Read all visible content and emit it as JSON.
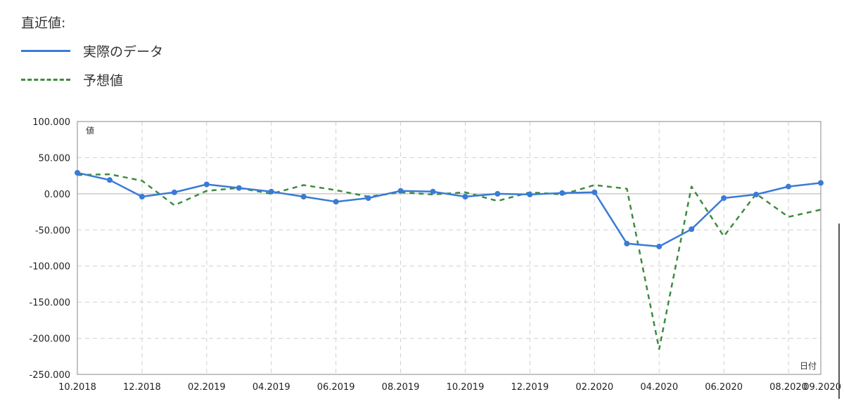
{
  "legend": {
    "title": "直近値:",
    "actual_label": "実際のデータ",
    "forecast_label": "予想値"
  },
  "colors": {
    "actual": "#3a7bd5",
    "forecast": "#3d8b40",
    "grid": "#d0d0d0",
    "zero_line": "#b0b0b0",
    "border": "#888888"
  },
  "chart_data": {
    "type": "line",
    "title": "",
    "xlabel": "日付",
    "ylabel": "値",
    "ylim": [
      -250,
      100
    ],
    "y_ticks": [
      100,
      50,
      0,
      -50,
      -100,
      -150,
      -200,
      -250
    ],
    "y_tick_labels": [
      "100.000",
      "50.000",
      "0.000",
      "-50.000",
      "-100.000",
      "-150.000",
      "-200.000",
      "-250.000"
    ],
    "x_ticks": [
      "10.2018",
      "12.2018",
      "02.2019",
      "04.2019",
      "06.2019",
      "08.2019",
      "10.2019",
      "12.2019",
      "02.2020",
      "04.2020",
      "06.2020",
      "08.2020",
      "09.2020"
    ],
    "grid": true,
    "legend_position": "top-left",
    "series": [
      {
        "name": "実際のデータ",
        "style": "solid-with-markers",
        "points": [
          {
            "x": "2018-10-01",
            "y": 29
          },
          {
            "x": "2018-11-01",
            "y": 19
          },
          {
            "x": "2018-12-01",
            "y": -4
          },
          {
            "x": "2019-01-01",
            "y": 2
          },
          {
            "x": "2019-02-01",
            "y": 13
          },
          {
            "x": "2019-03-01",
            "y": 8
          },
          {
            "x": "2019-04-01",
            "y": 3
          },
          {
            "x": "2019-05-01",
            "y": -4
          },
          {
            "x": "2019-06-01",
            "y": -11
          },
          {
            "x": "2019-07-01",
            "y": -6
          },
          {
            "x": "2019-08-01",
            "y": 4
          },
          {
            "x": "2019-09-01",
            "y": 3
          },
          {
            "x": "2019-10-01",
            "y": -4
          },
          {
            "x": "2019-11-01",
            "y": 0
          },
          {
            "x": "2019-12-01",
            "y": -1
          },
          {
            "x": "2020-01-01",
            "y": 1
          },
          {
            "x": "2020-02-01",
            "y": 2
          },
          {
            "x": "2020-03-01",
            "y": -69
          },
          {
            "x": "2020-04-01",
            "y": -73
          },
          {
            "x": "2020-05-01",
            "y": -49
          },
          {
            "x": "2020-06-01",
            "y": -6
          },
          {
            "x": "2020-07-01",
            "y": -1
          },
          {
            "x": "2020-08-01",
            "y": 10
          },
          {
            "x": "2020-09-01",
            "y": 15
          }
        ]
      },
      {
        "name": "予想値",
        "style": "dashed",
        "points": [
          {
            "x": "2018-10-01",
            "y": 26
          },
          {
            "x": "2018-11-01",
            "y": 27
          },
          {
            "x": "2018-12-01",
            "y": 18
          },
          {
            "x": "2019-01-01",
            "y": -16
          },
          {
            "x": "2019-02-01",
            "y": 4
          },
          {
            "x": "2019-03-01",
            "y": 8
          },
          {
            "x": "2019-04-01",
            "y": 0
          },
          {
            "x": "2019-05-01",
            "y": 12
          },
          {
            "x": "2019-06-01",
            "y": 5
          },
          {
            "x": "2019-07-01",
            "y": -4
          },
          {
            "x": "2019-08-01",
            "y": 2
          },
          {
            "x": "2019-09-01",
            "y": -1
          },
          {
            "x": "2019-10-01",
            "y": 2
          },
          {
            "x": "2019-11-01",
            "y": -10
          },
          {
            "x": "2019-12-01",
            "y": 2
          },
          {
            "x": "2020-01-01",
            "y": -1
          },
          {
            "x": "2020-02-01",
            "y": 12
          },
          {
            "x": "2020-03-01",
            "y": 7
          },
          {
            "x": "2020-04-01",
            "y": -215
          },
          {
            "x": "2020-05-01",
            "y": 10
          },
          {
            "x": "2020-06-01",
            "y": -59
          },
          {
            "x": "2020-07-01",
            "y": 0
          },
          {
            "x": "2020-08-01",
            "y": -32
          },
          {
            "x": "2020-09-01",
            "y": -22
          }
        ]
      }
    ]
  }
}
